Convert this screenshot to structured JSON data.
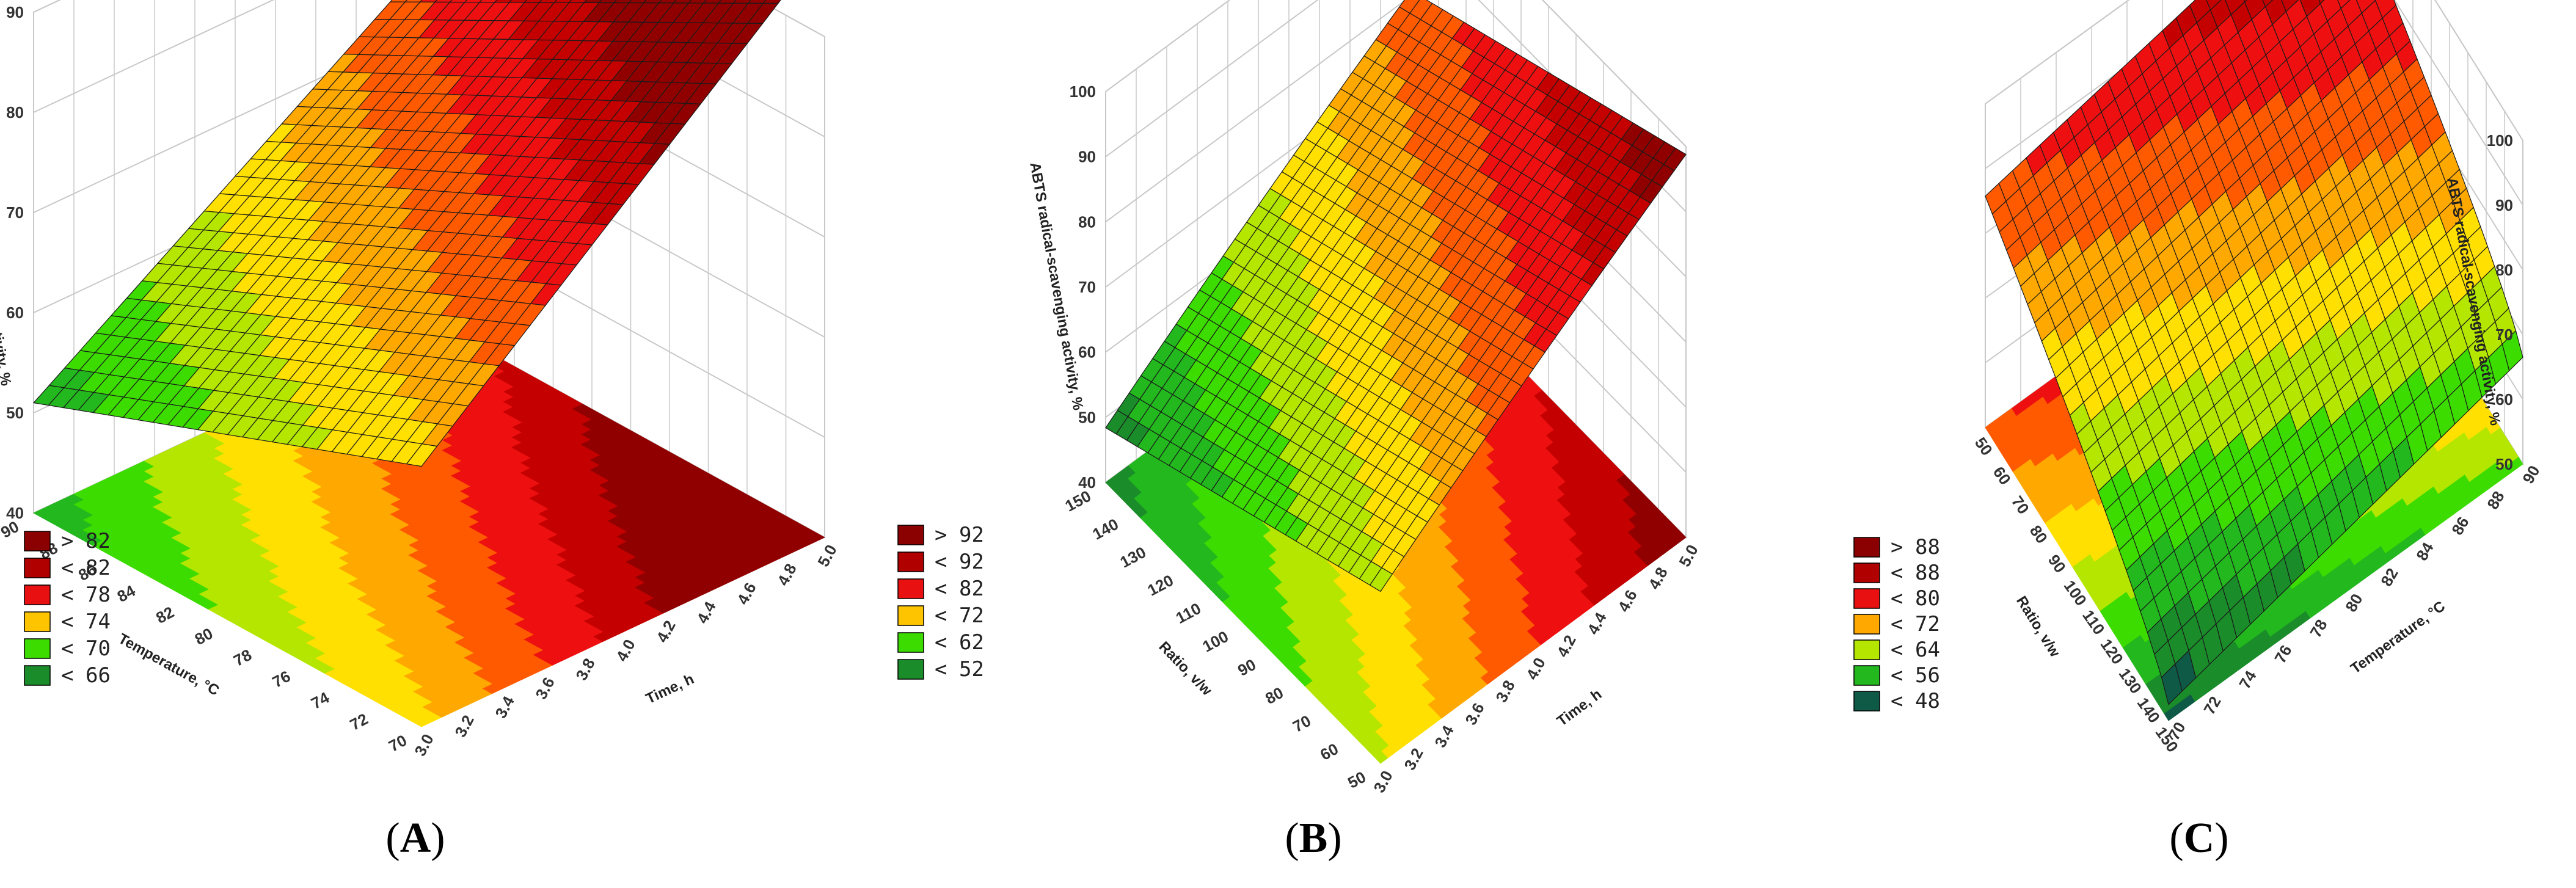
{
  "colors": {
    "grid": "#c8c8c8",
    "mesh": "#1a1a1a",
    "scale": [
      "#0e5a46",
      "#1a8c2a",
      "#22b81e",
      "#3cdc00",
      "#b4e600",
      "#ffe000",
      "#ffa800",
      "#ff5a00",
      "#ee1010",
      "#c40000",
      "#900000"
    ]
  },
  "chart_data": [
    {
      "id": "A",
      "type": "surface",
      "caption_letter": "A",
      "zlabel": "ABTS radical-scavenging activity, %",
      "xlabel": "Time, h",
      "ylabel": "Temperature, °C",
      "z_ticks": [
        "40",
        "50",
        "60",
        "70",
        "80",
        "90"
      ],
      "x_ticks": [
        "3.0",
        "3.2",
        "3.4",
        "3.6",
        "3.8",
        "4.0",
        "4.2",
        "4.4",
        "4.6",
        "4.8",
        "5.0"
      ],
      "y_ticks": [
        "70",
        "72",
        "74",
        "76",
        "78",
        "80",
        "82",
        "84",
        "86",
        "88",
        "90"
      ],
      "zlim": [
        40,
        90
      ],
      "xlim": [
        3.0,
        5.0
      ],
      "ylim": [
        70,
        90
      ],
      "legend": [
        {
          "sym": ">",
          "val": "82"
        },
        {
          "sym": "<",
          "val": "82"
        },
        {
          "sym": "<",
          "val": "78"
        },
        {
          "sym": "<",
          "val": "74"
        },
        {
          "sym": "<",
          "val": "70"
        },
        {
          "sym": "<",
          "val": "66"
        }
      ],
      "legend_colors": [
        "#8b0000",
        "#b00000",
        "#e81010",
        "#ffc400",
        "#3cdc00",
        "#1a8c2a"
      ]
    },
    {
      "id": "B",
      "type": "surface",
      "caption_letter": "B",
      "zlabel": "ABTS radical-scavenging activity, %",
      "xlabel": "Time, h",
      "ylabel": "Ratio, v/w",
      "z_ticks": [
        "40",
        "50",
        "60",
        "70",
        "80",
        "90",
        "100"
      ],
      "x_ticks": [
        "3.0",
        "3.2",
        "3.4",
        "3.6",
        "3.8",
        "4.0",
        "4.2",
        "4.4",
        "4.6",
        "4.8",
        "5.0"
      ],
      "y_ticks": [
        "50",
        "60",
        "70",
        "80",
        "90",
        "100",
        "110",
        "120",
        "130",
        "140",
        "150"
      ],
      "zlim": [
        40,
        100
      ],
      "xlim": [
        3.0,
        5.0
      ],
      "ylim": [
        50,
        150
      ],
      "legend": [
        {
          "sym": ">",
          "val": "92"
        },
        {
          "sym": "<",
          "val": "92"
        },
        {
          "sym": "<",
          "val": "82"
        },
        {
          "sym": "<",
          "val": "72"
        },
        {
          "sym": "<",
          "val": "62"
        },
        {
          "sym": "<",
          "val": "52"
        }
      ],
      "legend_colors": [
        "#8b0000",
        "#b00000",
        "#e81010",
        "#ffc400",
        "#3cdc00",
        "#1a8c2a"
      ]
    },
    {
      "id": "C",
      "type": "surface",
      "caption_letter": "C",
      "zlabel": "ABTS radical-scavenging activity, %",
      "xlabel": "Ratio, v/w",
      "ylabel": "Temperature, °C",
      "z_ticks": [
        "50",
        "60",
        "70",
        "80",
        "90",
        "100"
      ],
      "x_ticks": [
        "150",
        "140",
        "130",
        "120",
        "110",
        "100",
        "90",
        "80",
        "70",
        "60",
        "50"
      ],
      "y_ticks": [
        "70",
        "72",
        "74",
        "76",
        "78",
        "80",
        "82",
        "84",
        "86",
        "88",
        "90"
      ],
      "zlim": [
        45,
        100
      ],
      "xlim": [
        150,
        50
      ],
      "ylim": [
        70,
        90
      ],
      "legend": [
        {
          "sym": ">",
          "val": "88"
        },
        {
          "sym": "<",
          "val": "88"
        },
        {
          "sym": "<",
          "val": "80"
        },
        {
          "sym": "<",
          "val": "72"
        },
        {
          "sym": "<",
          "val": "64"
        },
        {
          "sym": "<",
          "val": "56"
        },
        {
          "sym": "<",
          "val": "48"
        }
      ],
      "legend_colors": [
        "#8b0000",
        "#b00000",
        "#e81010",
        "#ffa800",
        "#b4e600",
        "#22b81e",
        "#0e5a46"
      ]
    }
  ]
}
